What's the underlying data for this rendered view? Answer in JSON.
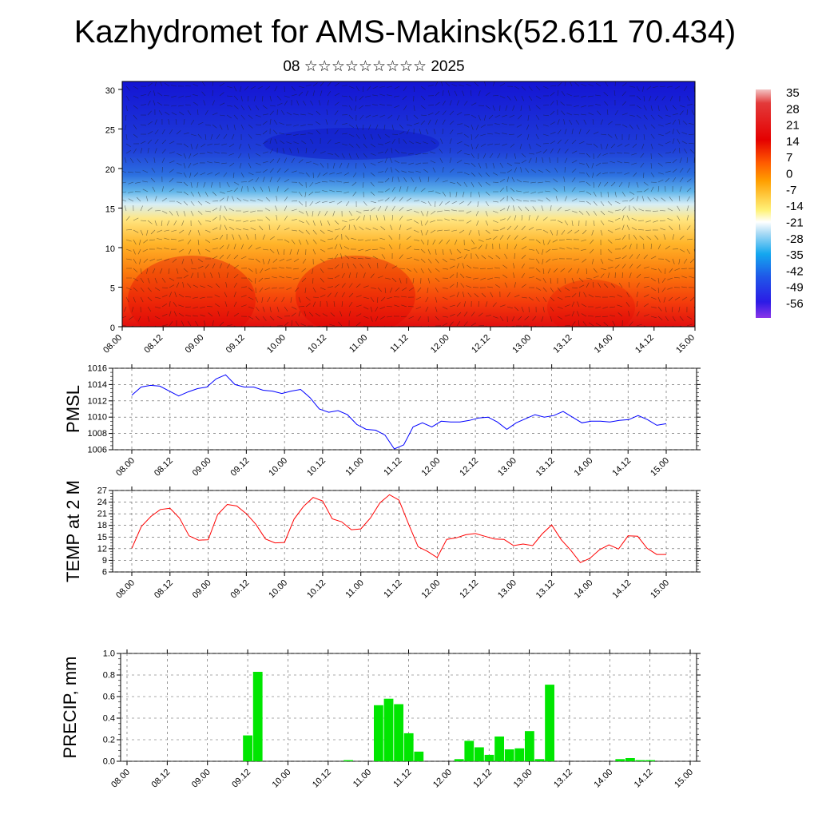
{
  "title": "Kazhydromet for AMS-Makinsk(52.611 70.434)",
  "subtitle": "08 ☆☆☆☆☆☆☆☆☆ 2025",
  "colors": {
    "pmsl": "#0000ff",
    "temp": "#ff0000",
    "precip": "#00e600"
  },
  "chart_data": [
    {
      "type": "heatmap",
      "y_ticks": [
        "0",
        "5",
        "10",
        "15",
        "20",
        "25",
        "30"
      ],
      "ylim": [
        0,
        31
      ],
      "x_ticks": [
        "08.00",
        "08.12",
        "09.00",
        "09.12",
        "10.00",
        "10.12",
        "11.00",
        "11.12",
        "12.00",
        "12.12",
        "13.00",
        "13.12",
        "14.00",
        "14.12",
        "15.00"
      ],
      "colorbar_labels": [
        "35",
        "28",
        "21",
        "14",
        "7",
        "0",
        "-7",
        "-14",
        "-21",
        "-28",
        "-35",
        "-42",
        "-49",
        "-56"
      ],
      "wind_vectors": true
    },
    {
      "type": "line",
      "ylabel": "PMSL",
      "y_ticks": [
        "1016",
        "1014",
        "1012",
        "1010",
        "1008",
        "1006"
      ],
      "ylim": [
        1006,
        1016
      ],
      "x_ticks": [
        "08.00",
        "08.12",
        "09.00",
        "09.12",
        "10.00",
        "10.12",
        "11.00",
        "11.12",
        "12.00",
        "12.12",
        "13.00",
        "13.12",
        "14.00",
        "14.12",
        "15.00"
      ],
      "values": [
        1012.7,
        1013.7,
        1013.9,
        1013.8,
        1013.2,
        1012.6,
        1013.1,
        1013.5,
        1013.7,
        1014.7,
        1015.2,
        1014.0,
        1013.7,
        1013.7,
        1013.3,
        1013.2,
        1012.9,
        1013.2,
        1013.4,
        1012.4,
        1011.0,
        1010.6,
        1010.8,
        1010.3,
        1009.1,
        1008.5,
        1008.4,
        1007.8,
        1006.1,
        1006.6,
        1008.8,
        1009.3,
        1008.8,
        1009.5,
        1009.4,
        1009.4,
        1009.6,
        1009.9,
        1010.0,
        1009.4,
        1008.5,
        1009.3,
        1009.8,
        1010.3,
        1010.0,
        1010.2,
        1010.7,
        1010.0,
        1009.3,
        1009.5,
        1009.5,
        1009.4,
        1009.6,
        1009.7,
        1010.2,
        1009.7,
        1009.0,
        1009.2
      ]
    },
    {
      "type": "line",
      "ylabel": "TEMP at 2 M",
      "y_ticks": [
        "27",
        "24",
        "21",
        "18",
        "15",
        "12",
        "9",
        "6"
      ],
      "ylim": [
        6,
        27
      ],
      "x_ticks": [
        "08.00",
        "08.12",
        "09.00",
        "09.12",
        "10.00",
        "10.12",
        "11.00",
        "11.12",
        "12.00",
        "12.12",
        "13.00",
        "13.12",
        "14.00",
        "14.12",
        "15.00"
      ],
      "values": [
        12.1,
        17.7,
        20.3,
        22.1,
        22.4,
        19.9,
        15.3,
        14.2,
        14.3,
        20.8,
        23.4,
        23.0,
        21.0,
        18.3,
        14.5,
        13.5,
        13.6,
        19.6,
        22.9,
        25.2,
        24.3,
        19.7,
        18.9,
        16.9,
        17.1,
        19.9,
        23.8,
        25.9,
        24.5,
        18.4,
        12.5,
        11.3,
        9.7,
        14.4,
        14.8,
        15.6,
        15.9,
        15.2,
        14.5,
        14.4,
        12.8,
        13.2,
        12.8,
        15.8,
        18.1,
        14.3,
        11.6,
        8.4,
        9.5,
        11.7,
        13.0,
        11.9,
        15.3,
        15.2,
        12.1,
        10.5,
        10.5
      ]
    },
    {
      "type": "bar",
      "ylabel": "PRECIP, mm",
      "y_ticks": [
        "1.0",
        "0.8",
        "0.6",
        "0.4",
        "0.2",
        "0.0"
      ],
      "ylim": [
        0,
        1
      ],
      "x_ticks": [
        "08.00",
        "08.12",
        "09.00",
        "09.12",
        "10.00",
        "10.12",
        "11.00",
        "11.12",
        "12.00",
        "12.12",
        "13.00",
        "13.12",
        "14.00",
        "14.12",
        "15.00"
      ],
      "values": [
        0,
        0,
        0,
        0,
        0,
        0,
        0,
        0,
        0,
        0,
        0,
        0,
        0.24,
        0.83,
        0,
        0,
        0,
        0,
        0,
        0,
        0,
        0,
        0.01,
        0,
        0,
        0.52,
        0.58,
        0.53,
        0.26,
        0.09,
        0,
        0,
        0,
        0.02,
        0.19,
        0.13,
        0.06,
        0.23,
        0.11,
        0.12,
        0.28,
        0.02,
        0.71,
        0,
        0,
        0,
        0,
        0,
        0,
        0.02,
        0.03,
        0.01,
        0.01,
        0,
        0,
        0
      ]
    }
  ]
}
